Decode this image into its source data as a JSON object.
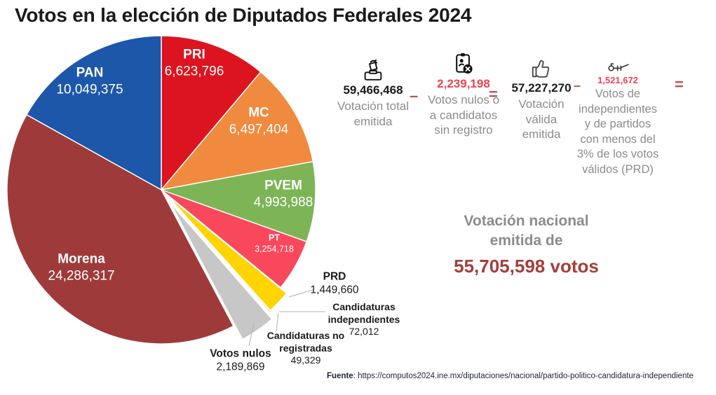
{
  "chart_data": {
    "type": "pie",
    "title": "Votos en la elección de Diputados Federales 2024",
    "total": 59466468,
    "start_angle_deg": 0,
    "clockwise": true,
    "center": [
      230,
      271
    ],
    "radius": 220,
    "slices": [
      {
        "label": "PRI",
        "value": 6623796,
        "display": "6,623,796",
        "color": "#DC1420",
        "label_lines": [
          "PRI",
          "6,623,796"
        ],
        "inside": true,
        "font": 19,
        "label_xy": [
          277,
          90
        ]
      },
      {
        "label": "MC",
        "value": 6497404,
        "display": "6,497,404",
        "color": "#F08A3E",
        "label_lines": [
          "MC",
          "6,497,404"
        ],
        "inside": true,
        "font": 19,
        "label_xy": [
          369,
          173
        ]
      },
      {
        "label": "PVEM",
        "value": 4993988,
        "display": "4,993,988",
        "color": "#7DB556",
        "label_lines": [
          "PVEM",
          "4,993,988"
        ],
        "inside": true,
        "font": 19,
        "label_xy": [
          404,
          277
        ]
      },
      {
        "label": "PT",
        "value": 3254718,
        "display": "3,254,718",
        "color": "#F9485C",
        "label_lines": [
          "PT",
          "3,254,718"
        ],
        "inside": true,
        "font": 12.5,
        "label_xy": [
          391,
          348
        ]
      },
      {
        "label": "PRD",
        "value": 1449660,
        "display": "1,449,660",
        "color": "#FFD401",
        "explode": 12,
        "label_lines": [
          "PRD",
          "1,449,660"
        ],
        "inside": false,
        "font": 15.5,
        "label_xy": [
          477,
          405
        ]
      },
      {
        "label": "Candidaturas independientes",
        "value": 72012,
        "display": "72,012",
        "color": "#93392F",
        "explode": 14,
        "label_lines": [
          "Candidaturas",
          "independientes",
          "72,012"
        ],
        "inside": false,
        "font": 14,
        "label_xy": [
          519,
          456
        ]
      },
      {
        "label": "Candidaturas no registradas",
        "value": 49329,
        "display": "49,329",
        "color": "#40602E",
        "explode": 17,
        "label_lines": [
          "Candidaturas no",
          "registradas",
          "49,329"
        ],
        "inside": false,
        "font": 14,
        "label_xy": [
          436,
          497
        ]
      },
      {
        "label": "Votos nulos",
        "value": 2189869,
        "display": "2,189,869",
        "color": "#C7C7C7",
        "explode": 23,
        "label_lines": [
          "Votos nulos",
          "2,189,869"
        ],
        "inside": false,
        "font": 15.5,
        "label_xy": [
          343,
          515
        ]
      },
      {
        "label": "Morena",
        "value": 24286317,
        "display": "24,286,317",
        "color": "#9E3B3A",
        "label_lines": [
          "Morena",
          "24,286,317"
        ],
        "inside": true,
        "font": 19,
        "label_xy": [
          116,
          382
        ]
      },
      {
        "label": "PAN",
        "value": 10049375,
        "display": "10,049,375",
        "color": "#1D57A9",
        "label_lines": [
          "PAN",
          "10,049,375"
        ],
        "inside": true,
        "font": 19,
        "label_xy": [
          128,
          116
        ]
      }
    ],
    "leader_lines": [
      [
        412,
        424,
        446,
        414
      ],
      [
        398,
        445,
        464,
        445
      ],
      [
        397,
        447,
        394,
        473
      ],
      [
        362,
        462,
        355,
        494
      ]
    ],
    "legend_position": "none",
    "grid": false
  },
  "formula": {
    "steps": [
      {
        "icon": "ballot-box-icon",
        "value": "59,466,468",
        "value_color": "dark",
        "label_lines": [
          "Votación total",
          "emitida"
        ]
      },
      {
        "op": "–"
      },
      {
        "icon": "clipboard-x-icon",
        "value": "2,239,198",
        "value_color": "red",
        "label_lines": [
          "Votos nulos o",
          "a candidatos",
          "sin registro"
        ]
      },
      {
        "op": "="
      },
      {
        "icon": "thumbs-up-icon",
        "value": "57,227,270",
        "value_color": "dark",
        "label_lines": [
          "Votación",
          "válida",
          "emitida"
        ]
      },
      {
        "op": "–"
      },
      {
        "icon": "voting-lever-icon",
        "value": "1,521,672",
        "value_color": "red",
        "label_lines": [
          "Votos de",
          "independientes",
          "y de partidos",
          "con menos del",
          "3% de los votos",
          "válidos (PRD)"
        ]
      },
      {
        "op": "="
      }
    ],
    "result": {
      "line1": "Votación nacional",
      "line2": "emitida de",
      "value": "55,705,598 votos"
    }
  },
  "footer": {
    "label": "Fuente",
    "colon": ":  ",
    "url": "https://computos2024.ine.mx/diputaciones/nacional/partido-politico-candidatura-independiente"
  },
  "colors": {
    "operator": "#C0504D",
    "red_number": "#EF4150",
    "result_value": "#A43E3C",
    "result_text": "#8C8C8C",
    "label_gray": "#8C8C8C"
  }
}
